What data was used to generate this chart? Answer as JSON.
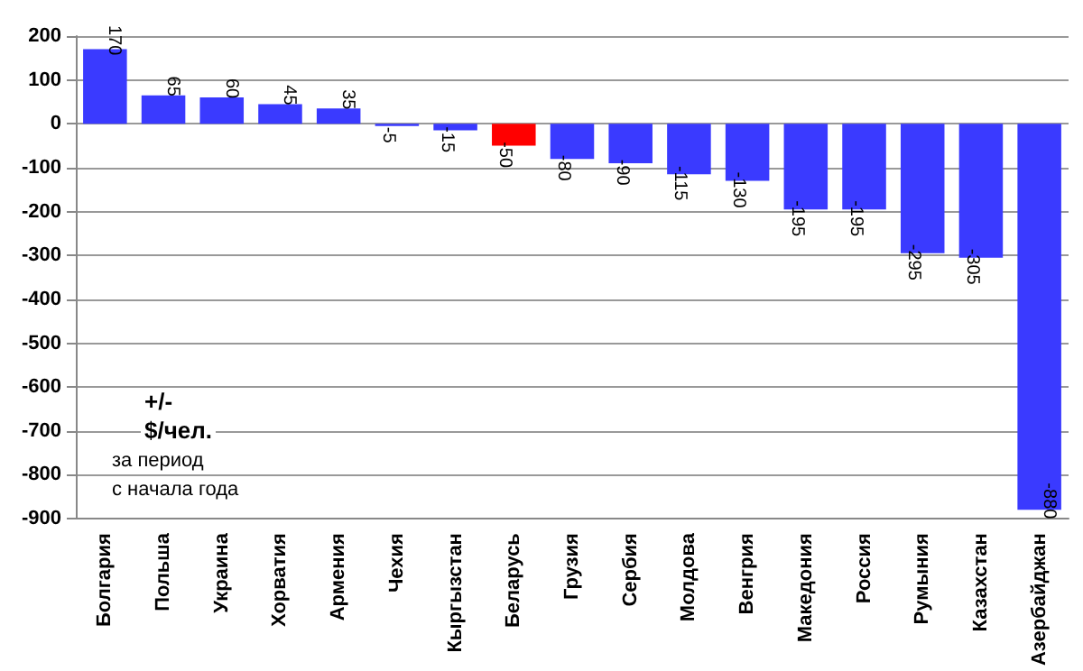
{
  "chart_data": {
    "type": "bar",
    "categories": [
      "Болгария",
      "Польша",
      "Украина",
      "Хорватия",
      "Армения",
      "Чехия",
      "Кыргызстан",
      "Беларусь",
      "Грузия",
      "Сербия",
      "Молдова",
      "Венгрия",
      "Македония",
      "Россия",
      "Румыния",
      "Казахстан",
      "Азербайджан"
    ],
    "values": [
      170,
      65,
      60,
      45,
      35,
      -5,
      -15,
      -50,
      -80,
      -90,
      -115,
      -130,
      -195,
      -195,
      -295,
      -305,
      -880
    ],
    "colors": [
      "#3a3aff",
      "#3a3aff",
      "#3a3aff",
      "#3a3aff",
      "#3a3aff",
      "#3a3aff",
      "#3a3aff",
      "#ff0000",
      "#3a3aff",
      "#3a3aff",
      "#3a3aff",
      "#3a3aff",
      "#3a3aff",
      "#3a3aff",
      "#3a3aff",
      "#3a3aff",
      "#3a3aff"
    ],
    "ylim": [
      -900,
      200
    ],
    "yticks": [
      -900,
      -800,
      -700,
      -600,
      -500,
      -400,
      -300,
      -200,
      -100,
      0,
      100,
      200
    ],
    "grid": "y",
    "data_labels": true,
    "annotations": [
      "+/-",
      "$/чел.",
      "за период",
      "с начала года"
    ]
  }
}
